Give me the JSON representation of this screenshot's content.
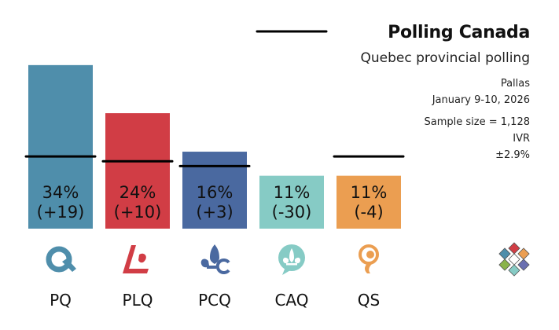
{
  "header": {
    "title": "Polling Canada",
    "subtitle": "Quebec provincial polling"
  },
  "poll_info": {
    "pollster": "Pallas",
    "dates": "January 9-10, 2026",
    "sample_size": "Sample size = 1,128",
    "method": "IVR",
    "margin_of_error": "±2.9%"
  },
  "chart_data": {
    "type": "bar",
    "title": "Polling Canada",
    "subtitle": "Quebec provincial polling",
    "categories": [
      "PQ",
      "PLQ",
      "PCQ",
      "CAQ",
      "QS"
    ],
    "values": [
      34,
      24,
      16,
      11,
      11
    ],
    "change_labels": [
      "(+19)",
      "(+10)",
      "(+3)",
      "(-30)",
      "(-4)"
    ],
    "previous_values": [
      15,
      14,
      13,
      41,
      15
    ],
    "value_labels": [
      "34%",
      "24%",
      "16%",
      "11%",
      "11%"
    ],
    "colors": [
      "#4f8eab",
      "#d13d45",
      "#4a69a0",
      "#86cbc5",
      "#eb9e51"
    ],
    "icons": [
      "pq-logo-icon",
      "plq-logo-icon",
      "pcq-fleur-de-lis-icon",
      "caq-fleur-de-lis-icon",
      "qs-logo-icon"
    ],
    "ylim": [
      0,
      41
    ],
    "legend": "none",
    "grid": false
  },
  "branding": {
    "logo_icon": "polling-canada-logo-icon"
  }
}
